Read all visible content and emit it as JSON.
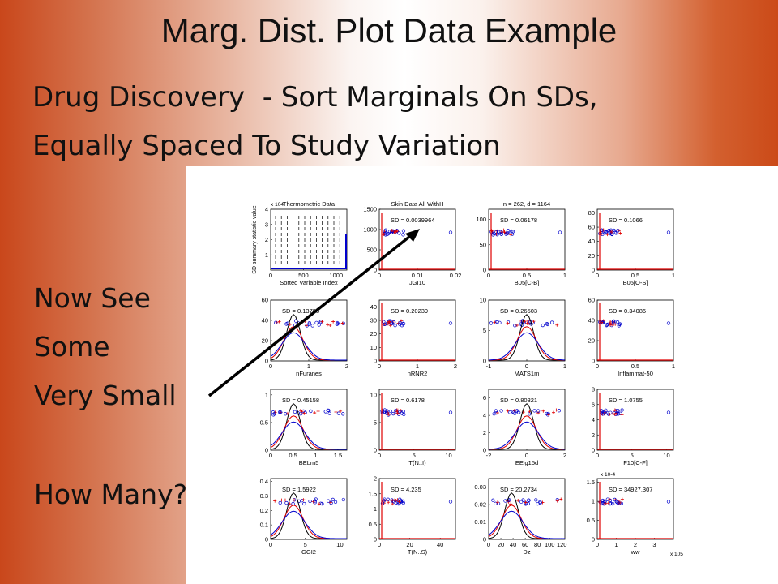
{
  "slide": {
    "title": "Marg. Dist. Plot Data Example",
    "subtitle_line1_a": "Drug Discovery",
    "subtitle_line1_b": "- Sort Marginals On SDs,",
    "subtitle_line2": "Equally Spaced To Study Variation",
    "side_texts": [
      "Now See",
      "Some",
      "Very Small",
      "How Many?"
    ]
  },
  "colors": {
    "orange": "#c9471b",
    "curve_black": "#000000",
    "curve_red": "#e00000",
    "curve_blue": "#0000cc",
    "arrow": "#000000"
  },
  "chart_data": [
    {
      "type": "line",
      "title": "Thermometric Data",
      "xlabel": "Sorted Variable Index",
      "ylabel": "SD summary statistic value",
      "xticks": [
        "0",
        "500",
        "1000"
      ],
      "yticks": [
        "1",
        "2",
        "3",
        "4"
      ],
      "y_exponent": "x 10^4",
      "xlim": [
        0,
        1164
      ],
      "ylim": [
        0,
        4
      ],
      "annotations": []
    },
    {
      "type": "scatter",
      "title": "Skin Data All WithH",
      "xlabel": "JGI10",
      "xticks": [
        "0",
        "0.01",
        "0.02"
      ],
      "yticks": [
        "0",
        "500",
        "1000",
        "1500"
      ],
      "xlim": [
        0,
        0.02
      ],
      "ylim": [
        0,
        1500
      ],
      "annotations": [
        "SD = 0.0039964"
      ]
    },
    {
      "type": "scatter",
      "title": "n = 262, d = 1164",
      "xlabel": "B05[C-B]",
      "xticks": [
        "0",
        "0.5",
        "1"
      ],
      "yticks": [
        "0",
        "50",
        "100"
      ],
      "xlim": [
        0,
        1
      ],
      "ylim": [
        0,
        120
      ],
      "annotations": [
        "SD = 0.06178"
      ]
    },
    {
      "type": "scatter",
      "title": "",
      "xlabel": "B05[O-S]",
      "xticks": [
        "0",
        "0.5",
        "1"
      ],
      "yticks": [
        "0",
        "20",
        "40",
        "60",
        "80"
      ],
      "xlim": [
        0,
        1
      ],
      "ylim": [
        0,
        85
      ],
      "annotations": [
        "SD = 0.1066"
      ]
    },
    {
      "type": "scatter",
      "title": "",
      "xlabel": "nFuranes",
      "xticks": [
        "0",
        "1",
        "2"
      ],
      "yticks": [
        "0",
        "20",
        "40",
        "60"
      ],
      "xlim": [
        0,
        2
      ],
      "ylim": [
        0,
        60
      ],
      "annotations": [
        "SD = 0.13793"
      ]
    },
    {
      "type": "scatter",
      "title": "",
      "xlabel": "nRNR2",
      "xticks": [
        "0",
        "1",
        "2"
      ],
      "yticks": [
        "0",
        "10",
        "20",
        "30",
        "40"
      ],
      "xlim": [
        0,
        2
      ],
      "ylim": [
        0,
        45
      ],
      "annotations": [
        "SD = 0.20239"
      ]
    },
    {
      "type": "scatter",
      "title": "",
      "xlabel": "MATS1m",
      "xticks": [
        "-1",
        "0",
        "1"
      ],
      "yticks": [
        "0",
        "5",
        "10"
      ],
      "xlim": [
        -1,
        1
      ],
      "ylim": [
        0,
        10
      ],
      "annotations": [
        "SD = 0.26503"
      ]
    },
    {
      "type": "scatter",
      "title": "",
      "xlabel": "Inflammat-50",
      "xticks": [
        "0",
        "0.5",
        "1"
      ],
      "yticks": [
        "0",
        "20",
        "40",
        "60"
      ],
      "xlim": [
        0,
        1
      ],
      "ylim": [
        0,
        60
      ],
      "annotations": [
        "SD = 0.34086"
      ]
    },
    {
      "type": "scatter",
      "title": "",
      "xlabel": "BELm5",
      "xticks": [
        "0",
        "0.5",
        "1",
        "1.5"
      ],
      "yticks": [
        "0",
        "0.5",
        "1"
      ],
      "xlim": [
        0,
        1.7
      ],
      "ylim": [
        0,
        1.1
      ],
      "annotations": [
        "SD = 0.45158"
      ]
    },
    {
      "type": "scatter",
      "title": "",
      "xlabel": "T(N..I)",
      "xticks": [
        "0",
        "5",
        "10"
      ],
      "yticks": [
        "0",
        "5",
        "10"
      ],
      "xlim": [
        0,
        11
      ],
      "ylim": [
        0,
        11
      ],
      "annotations": [
        "SD = 0.6178"
      ]
    },
    {
      "type": "scatter",
      "title": "",
      "xlabel": "EEig15d",
      "xticks": [
        "-2",
        "0",
        "2"
      ],
      "yticks": [
        "0",
        "2",
        "4",
        "6"
      ],
      "xlim": [
        -2,
        2
      ],
      "ylim": [
        0,
        7
      ],
      "annotations": [
        "SD = 0.80321"
      ]
    },
    {
      "type": "scatter",
      "title": "",
      "xlabel": "F10[C-F]",
      "xticks": [
        "0",
        "5",
        "10"
      ],
      "yticks": [
        "0",
        "2",
        "4",
        "6",
        "8"
      ],
      "xlim": [
        0,
        11
      ],
      "ylim": [
        0,
        8
      ],
      "annotations": [
        "SD = 1.0755"
      ]
    },
    {
      "type": "scatter",
      "title": "",
      "xlabel": "GGI2",
      "xticks": [
        "0",
        "5",
        "10"
      ],
      "yticks": [
        "0",
        "0.1",
        "0.2",
        "0.3",
        "0.4"
      ],
      "xlim": [
        0,
        11
      ],
      "ylim": [
        0,
        0.42
      ],
      "annotations": [
        "SD = 1.5922"
      ]
    },
    {
      "type": "scatter",
      "title": "",
      "xlabel": "T(N..S)",
      "xticks": [
        "0",
        "20",
        "40"
      ],
      "yticks": [
        "0",
        "0.5",
        "1",
        "1.5",
        "2"
      ],
      "xlim": [
        0,
        50
      ],
      "ylim": [
        0,
        2
      ],
      "annotations": [
        "SD = 4.235"
      ]
    },
    {
      "type": "scatter",
      "title": "",
      "xlabel": "Dz",
      "xticks": [
        "0",
        "20",
        "40",
        "60",
        "80",
        "100",
        "120"
      ],
      "yticks": [
        "0",
        "0.01",
        "0.02",
        "0.03"
      ],
      "xlim": [
        0,
        125
      ],
      "ylim": [
        0,
        0.035
      ],
      "annotations": [
        "SD = 20.2734"
      ]
    },
    {
      "type": "scatter",
      "title": "",
      "xlabel": "ww",
      "xticks": [
        "0",
        "1",
        "2",
        "3"
      ],
      "yticks": [
        "0",
        "0.5",
        "1",
        "1.5"
      ],
      "xlim": [
        0,
        4
      ],
      "ylim": [
        0,
        1.6
      ],
      "annotations": [
        "SD = 34927.307",
        "x 10^-4",
        "x 10^5"
      ]
    }
  ]
}
